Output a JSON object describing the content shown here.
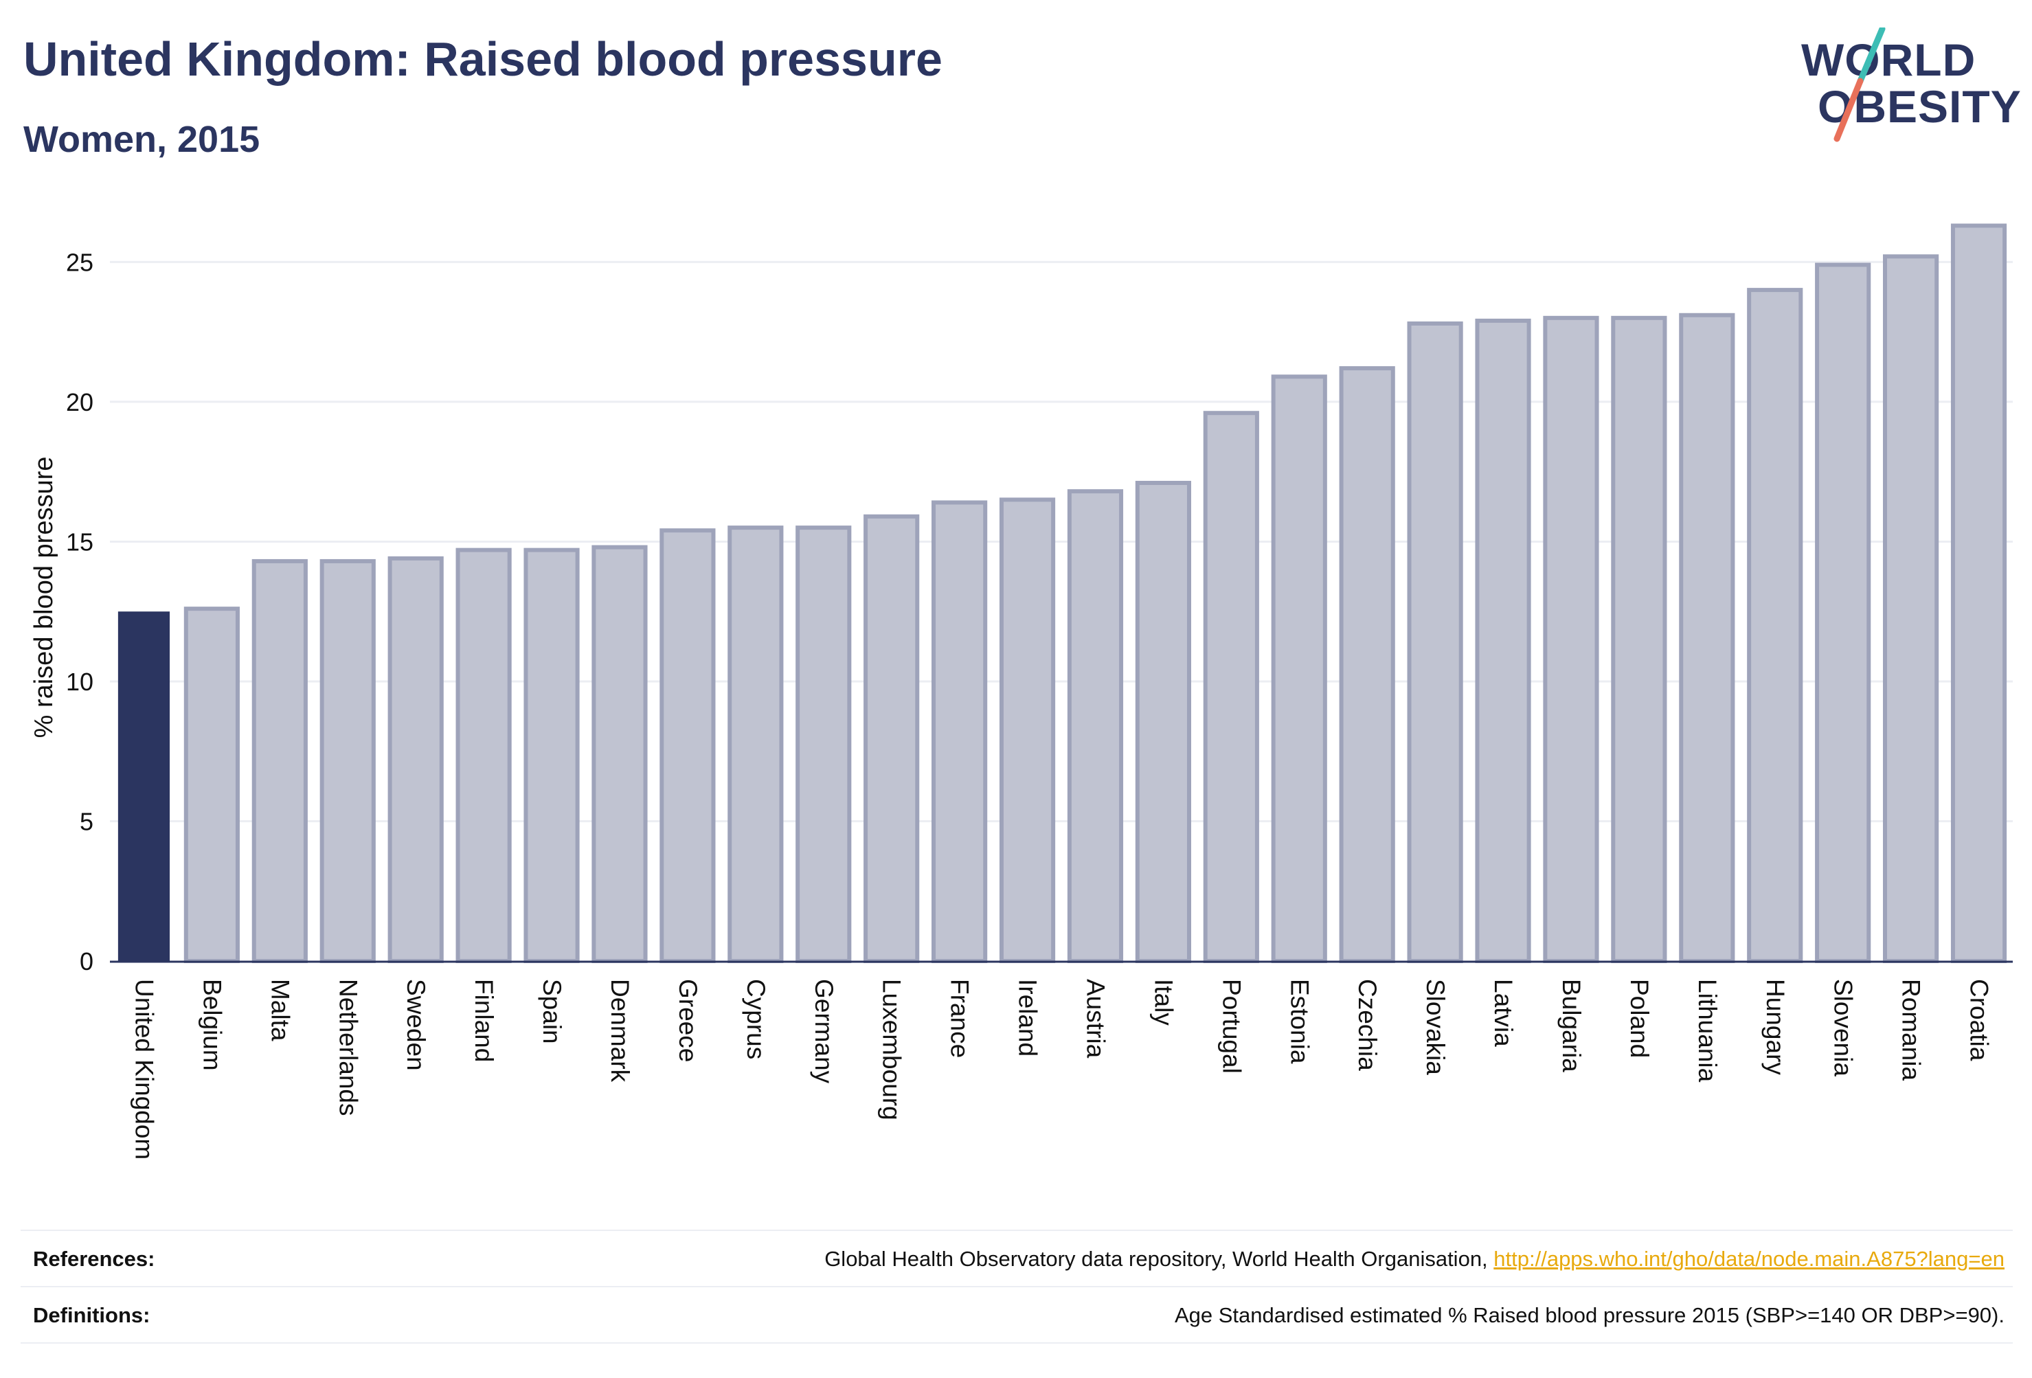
{
  "header": {
    "title": "United Kingdom: Raised blood pressure",
    "subtitle": "Women, 2015"
  },
  "logo": {
    "line1": "WORLD",
    "line2": "OBESITY",
    "colors": {
      "text": "#2b3560",
      "slash_top": "#3dbdb5",
      "slash_bottom": "#e8705a"
    }
  },
  "chart_data": {
    "type": "bar",
    "title": "",
    "xlabel": "",
    "ylabel": "% raised blood pressure",
    "ylim": [
      0,
      27
    ],
    "yticks": [
      0,
      5,
      10,
      15,
      20,
      25
    ],
    "grid": "horizontal",
    "highlight_category": "United Kingdom",
    "categories": [
      "United Kingdom",
      "Belgium",
      "Malta",
      "Netherlands",
      "Sweden",
      "Finland",
      "Spain",
      "Denmark",
      "Greece",
      "Cyprus",
      "Germany",
      "Luxembourg",
      "France",
      "Ireland",
      "Austria",
      "Italy",
      "Portugal",
      "Estonia",
      "Czechia",
      "Slovakia",
      "Latvia",
      "Bulgaria",
      "Poland",
      "Lithuania",
      "Hungary",
      "Slovenia",
      "Romania",
      "Croatia"
    ],
    "values": [
      12.5,
      12.6,
      14.3,
      14.3,
      14.4,
      14.7,
      14.7,
      14.8,
      15.4,
      15.5,
      15.5,
      15.9,
      16.4,
      16.5,
      16.8,
      17.1,
      19.6,
      20.9,
      21.2,
      22.8,
      22.9,
      23.0,
      23.0,
      23.1,
      24.0,
      24.9,
      25.2,
      26.3
    ],
    "colors": {
      "highlight": "#2b3560",
      "other_fill": "#c0c3d1",
      "other_stroke": "#9ea3ba",
      "grid": "#eceef3",
      "axis": "#2b3560"
    }
  },
  "footer": {
    "references_label": "References:",
    "references_text": "Global Health Observatory data repository, World Health Organisation, ",
    "references_link": "http://apps.who.int/gho/data/node.main.A875?lang=en",
    "definitions_label": "Definitions:",
    "definitions_text": "Age Standardised estimated % Raised blood pressure 2015 (SBP>=140 OR DBP>=90)."
  }
}
